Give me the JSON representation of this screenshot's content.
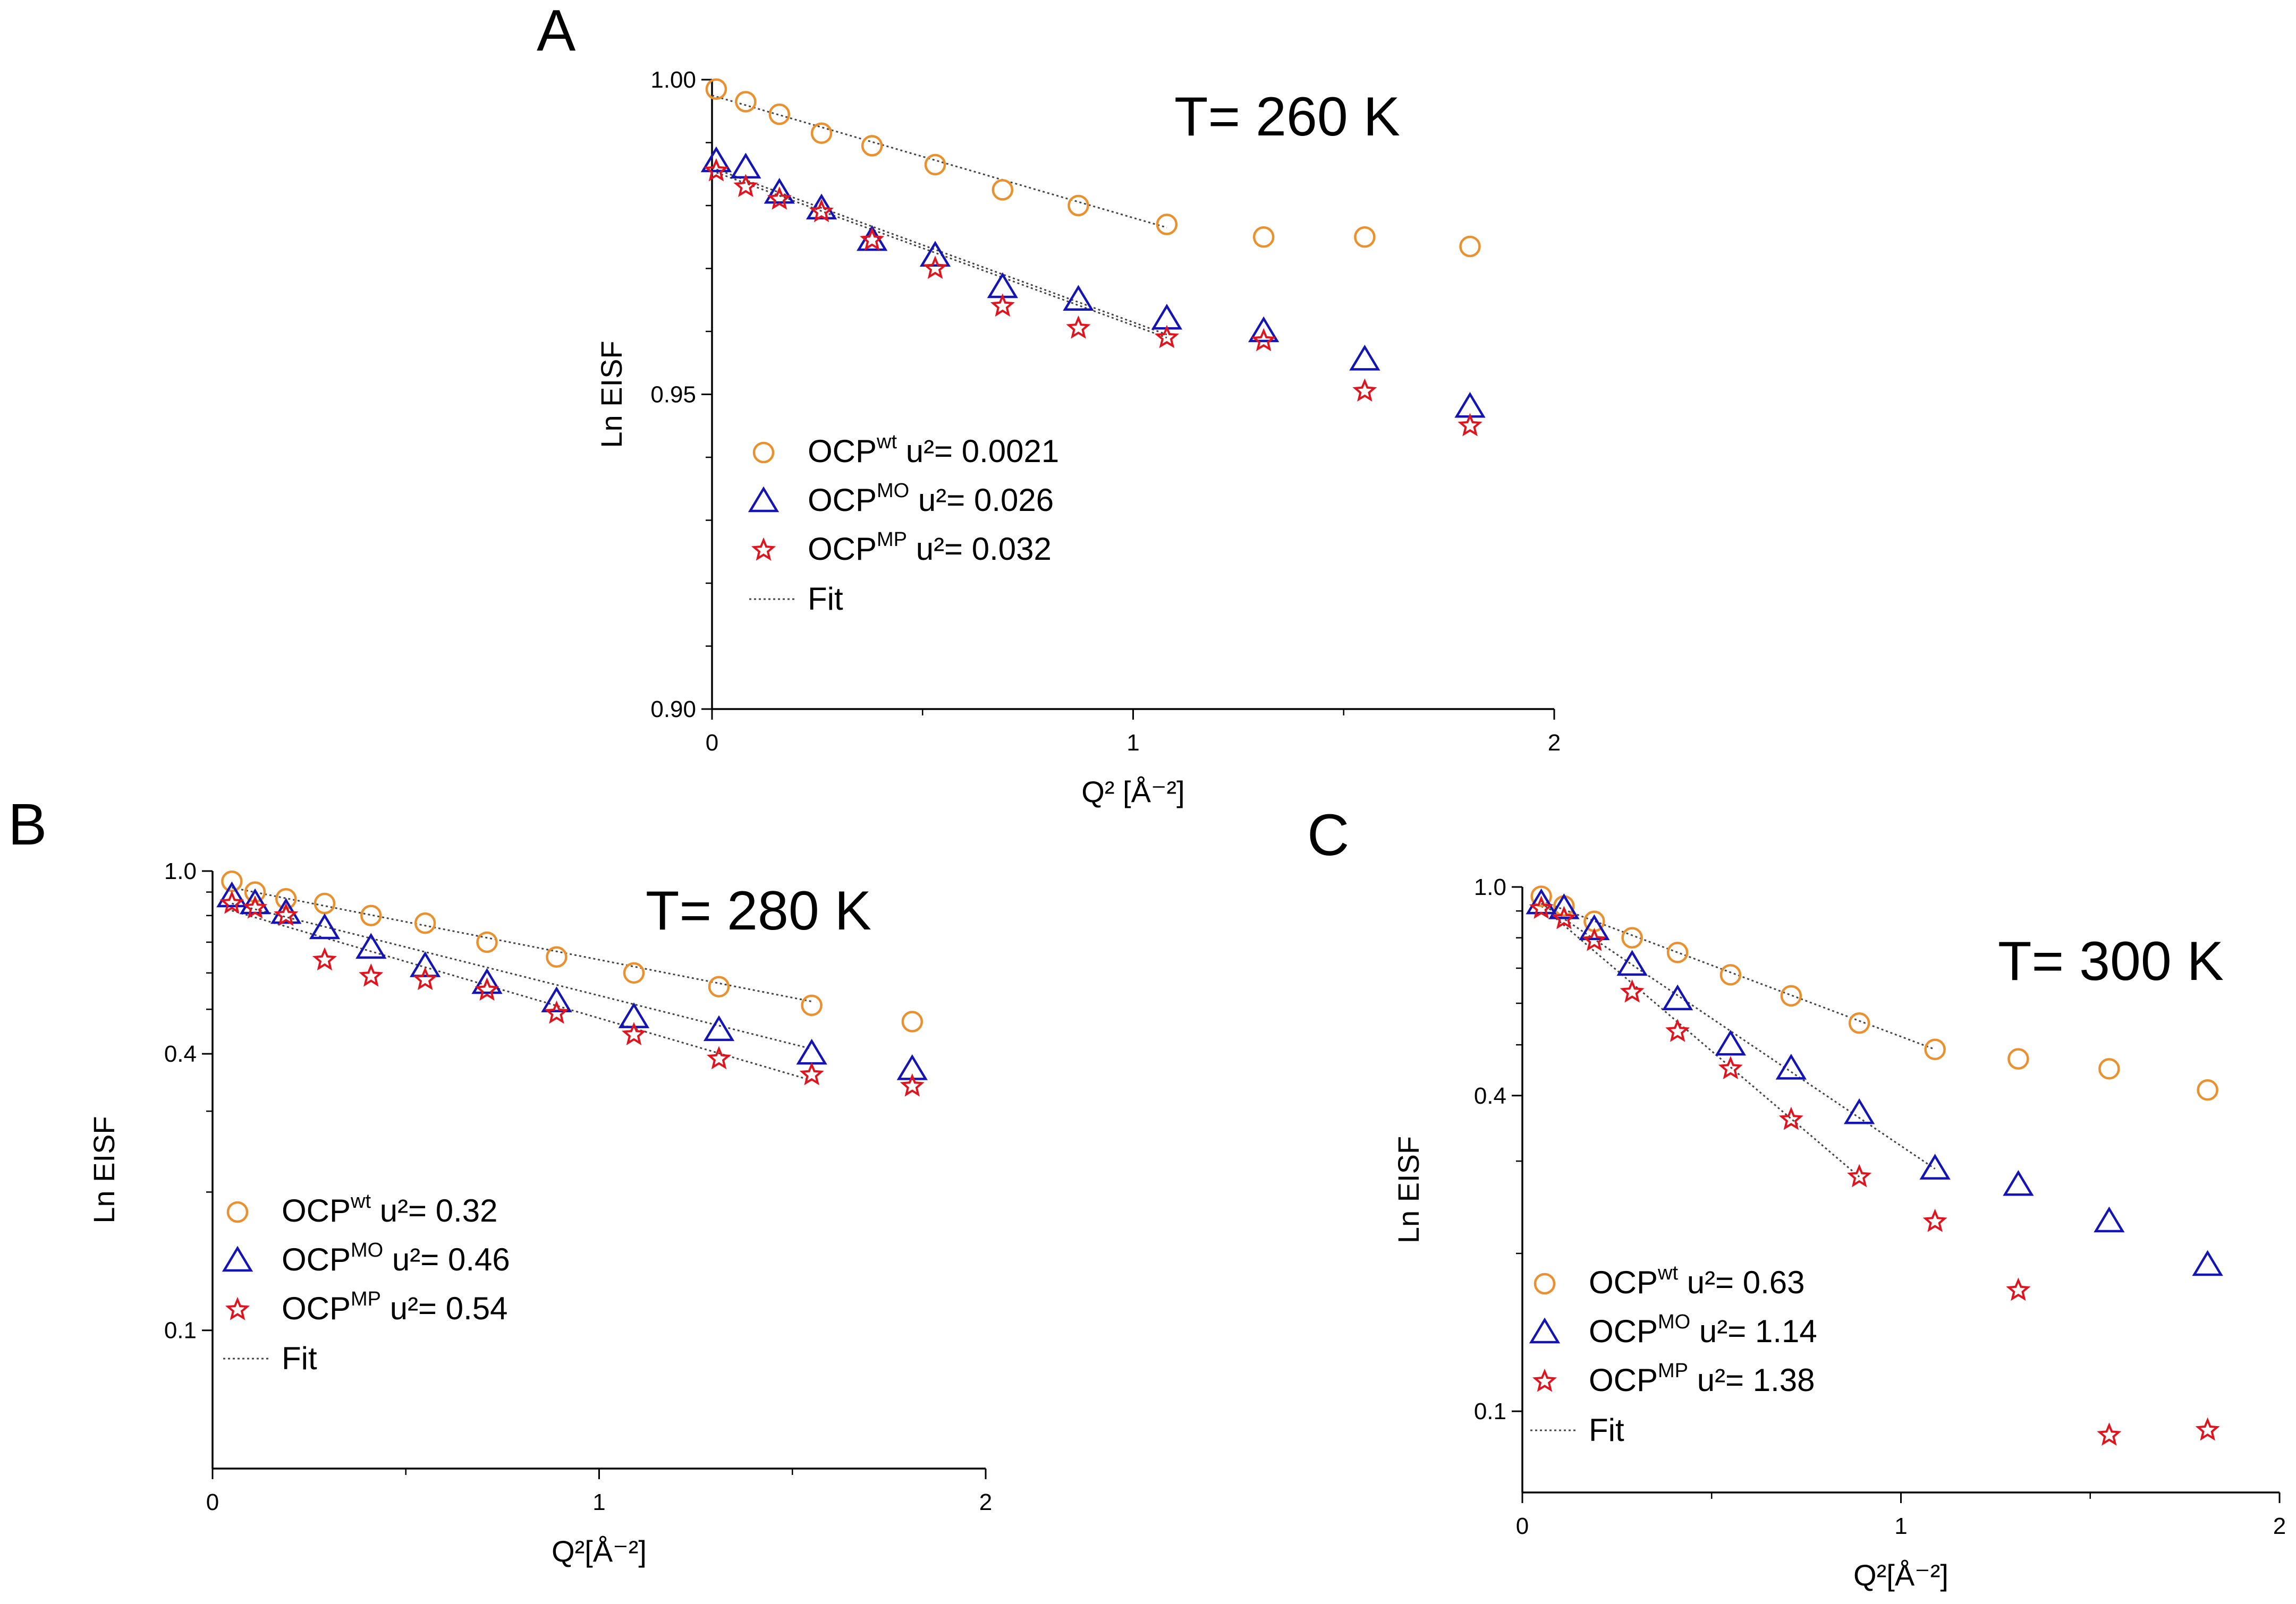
{
  "chart_data": [
    {
      "panel": "A",
      "type": "scatter",
      "title": "T= 260 K",
      "xlabel": "Q² [Å⁻²]",
      "ylabel": "Ln EISF",
      "xlim": [
        0,
        2
      ],
      "ylim": [
        0.9,
        1.0
      ],
      "xticks": [
        "0",
        "1",
        "2"
      ],
      "yticks": [
        "0.90",
        "0.95",
        "1.00"
      ],
      "ytick_values": [
        0.9,
        0.95,
        1.0
      ],
      "yscale": "linear",
      "grid": false,
      "legend_position": "bottom-left",
      "series": [
        {
          "name": "OCP wt",
          "legend_base": "OCP",
          "legend_sup": "wt",
          "legend_tail": " u²= 0.0021",
          "marker": "circle",
          "color": "#e8912e",
          "x": [
            0.01,
            0.08,
            0.16,
            0.26,
            0.38,
            0.53,
            0.69,
            0.87,
            1.08,
            1.31,
            1.55,
            1.8
          ],
          "y": [
            0.9985,
            0.9965,
            0.9945,
            0.9915,
            0.9895,
            0.9865,
            0.9825,
            0.98,
            0.977,
            0.975,
            0.975,
            0.9735
          ],
          "fit": {
            "x": [
              0.0,
              1.08
            ],
            "y": [
              0.9975,
              0.9765
            ]
          }
        },
        {
          "name": "OCP MO",
          "legend_base": "OCP",
          "legend_sup": "MO",
          "legend_tail": " u²= 0.026",
          "marker": "triangle",
          "color": "#1414b4",
          "x": [
            0.01,
            0.08,
            0.16,
            0.26,
            0.38,
            0.53,
            0.69,
            0.87,
            1.08,
            1.31,
            1.55,
            1.8
          ],
          "y": [
            0.987,
            0.986,
            0.982,
            0.9795,
            0.9745,
            0.972,
            0.967,
            0.965,
            0.962,
            0.96,
            0.9555,
            0.948
          ],
          "fit": {
            "x": [
              0.0,
              1.08
            ],
            "y": [
              0.986,
              0.9595
            ]
          }
        },
        {
          "name": "OCP MP",
          "legend_base": "OCP",
          "legend_sup": "MP",
          "legend_tail": " u²= 0.032",
          "marker": "star",
          "color": "#e0141e",
          "x": [
            0.01,
            0.08,
            0.16,
            0.26,
            0.38,
            0.53,
            0.69,
            0.87,
            1.08,
            1.31,
            1.55,
            1.8
          ],
          "y": [
            0.9855,
            0.983,
            0.981,
            0.979,
            0.9745,
            0.97,
            0.964,
            0.9605,
            0.959,
            0.9585,
            0.9505,
            0.945
          ],
          "fit": {
            "x": [
              0.0,
              1.08
            ],
            "y": [
              0.9855,
              0.959
            ]
          }
        }
      ],
      "fit_label": "Fit"
    },
    {
      "panel": "B",
      "type": "scatter",
      "title": "T= 280 K",
      "xlabel": "Q²[Å⁻²]",
      "ylabel": "Ln EISF",
      "xlim": [
        0,
        2
      ],
      "ylim": [
        0.05,
        1.0
      ],
      "xticks": [
        "0",
        "1",
        "2"
      ],
      "yticks": [
        "0.1",
        "0.4",
        "1.0"
      ],
      "ytick_values": [
        0.1,
        0.4,
        1.0
      ],
      "yscale": "log",
      "grid": false,
      "legend_position": "bottom-left",
      "series": [
        {
          "name": "OCP wt",
          "legend_base": "OCP",
          "legend_sup": "wt",
          "legend_tail": " u²= 0.32",
          "marker": "circle",
          "color": "#e8912e",
          "x": [
            0.05,
            0.11,
            0.19,
            0.29,
            0.41,
            0.55,
            0.71,
            0.89,
            1.09,
            1.31,
            1.55,
            1.81
          ],
          "y": [
            0.95,
            0.9,
            0.87,
            0.85,
            0.8,
            0.77,
            0.7,
            0.65,
            0.6,
            0.56,
            0.51,
            0.47
          ],
          "fit": {
            "x": [
              0.05,
              1.55
            ],
            "y": [
              0.92,
              0.52
            ]
          }
        },
        {
          "name": "OCP MO",
          "legend_base": "OCP",
          "legend_sup": "MO",
          "legend_tail": " u²= 0.46",
          "marker": "triangle",
          "color": "#1414b4",
          "x": [
            0.05,
            0.11,
            0.19,
            0.29,
            0.41,
            0.55,
            0.71,
            0.89,
            1.09,
            1.31,
            1.55,
            1.81
          ],
          "y": [
            0.88,
            0.85,
            0.81,
            0.75,
            0.68,
            0.62,
            0.57,
            0.52,
            0.48,
            0.45,
            0.4,
            0.37
          ],
          "fit": {
            "x": [
              0.05,
              1.55
            ],
            "y": [
              0.85,
              0.41
            ]
          }
        },
        {
          "name": "OCP MP",
          "legend_base": "OCP",
          "legend_sup": "MP",
          "legend_tail": " u²= 0.54",
          "marker": "star",
          "color": "#e0141e",
          "x": [
            0.05,
            0.11,
            0.19,
            0.29,
            0.41,
            0.55,
            0.71,
            0.89,
            1.09,
            1.31,
            1.55,
            1.81
          ],
          "y": [
            0.85,
            0.83,
            0.8,
            0.64,
            0.59,
            0.58,
            0.55,
            0.49,
            0.44,
            0.39,
            0.36,
            0.34
          ],
          "fit": {
            "x": [
              0.05,
              1.55
            ],
            "y": [
              0.82,
              0.35
            ]
          }
        }
      ],
      "fit_label": "Fit"
    },
    {
      "panel": "C",
      "type": "scatter",
      "title": "T= 300 K",
      "xlabel": "Q²[Å⁻²]",
      "ylabel": "Ln EISF",
      "xlim": [
        0,
        2
      ],
      "ylim": [
        0.07,
        1.0
      ],
      "xticks": [
        "0",
        "1",
        "2"
      ],
      "yticks": [
        "0.1",
        "0.4",
        "1.0"
      ],
      "ytick_values": [
        0.1,
        0.4,
        1.0
      ],
      "yscale": "log",
      "grid": false,
      "legend_position": "bottom-left",
      "series": [
        {
          "name": "OCP wt",
          "legend_base": "OCP",
          "legend_sup": "wt",
          "legend_tail": " u²= 0.63",
          "marker": "circle",
          "color": "#e8912e",
          "x": [
            0.05,
            0.11,
            0.19,
            0.29,
            0.41,
            0.55,
            0.71,
            0.89,
            1.09,
            1.31,
            1.55,
            1.81
          ],
          "y": [
            0.96,
            0.92,
            0.86,
            0.8,
            0.75,
            0.68,
            0.62,
            0.55,
            0.49,
            0.47,
            0.45,
            0.41
          ],
          "fit": {
            "x": [
              0.05,
              1.09
            ],
            "y": [
              0.94,
              0.49
            ]
          }
        },
        {
          "name": "OCP MO",
          "legend_base": "OCP",
          "legend_sup": "MO",
          "legend_tail": " u²= 1.14",
          "marker": "triangle",
          "color": "#1414b4",
          "x": [
            0.05,
            0.11,
            0.19,
            0.29,
            0.41,
            0.55,
            0.71,
            0.89,
            1.09,
            1.31,
            1.55,
            1.81
          ],
          "y": [
            0.93,
            0.91,
            0.83,
            0.71,
            0.61,
            0.5,
            0.45,
            0.37,
            0.29,
            0.27,
            0.23,
            0.19
          ],
          "fit": {
            "x": [
              0.05,
              1.09
            ],
            "y": [
              0.93,
              0.29
            ]
          }
        },
        {
          "name": "OCP MP",
          "legend_base": "OCP",
          "legend_sup": "MP",
          "legend_tail": " u²= 1.38",
          "marker": "star",
          "color": "#e0141e",
          "x": [
            0.05,
            0.11,
            0.19,
            0.29,
            0.41,
            0.55,
            0.71,
            0.89,
            1.09,
            1.31,
            1.55,
            1.81
          ],
          "y": [
            0.91,
            0.87,
            0.79,
            0.63,
            0.53,
            0.45,
            0.36,
            0.28,
            0.23,
            0.17,
            0.09,
            0.092
          ],
          "fit": {
            "x": [
              0.05,
              0.89
            ],
            "y": [
              0.92,
              0.28
            ]
          }
        }
      ],
      "fit_label": "Fit"
    }
  ]
}
